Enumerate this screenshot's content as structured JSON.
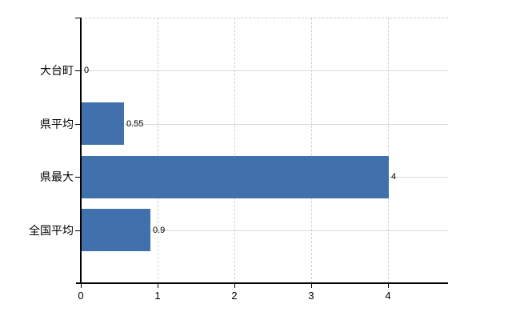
{
  "chart_data": {
    "type": "bar",
    "orientation": "horizontal",
    "title": "",
    "categories": [
      "大台町",
      "県平均",
      "県最大",
      "全国平均"
    ],
    "values": [
      0,
      0.55,
      4,
      0.9
    ],
    "value_labels": [
      "0",
      "0.55",
      "4",
      "0.9"
    ],
    "x_ticks": [
      "0",
      "1",
      "2",
      "3",
      "4"
    ],
    "x_tick_values": [
      0,
      1,
      2,
      3,
      4
    ],
    "xlim": [
      0,
      4.78
    ],
    "grid": true,
    "legend": false,
    "bar_color": "#4171ad",
    "axis_color": "#000000",
    "vgrid_color": "#d3ced3",
    "hgrid_color": "#d4dbd4",
    "text_color": "#000000"
  }
}
